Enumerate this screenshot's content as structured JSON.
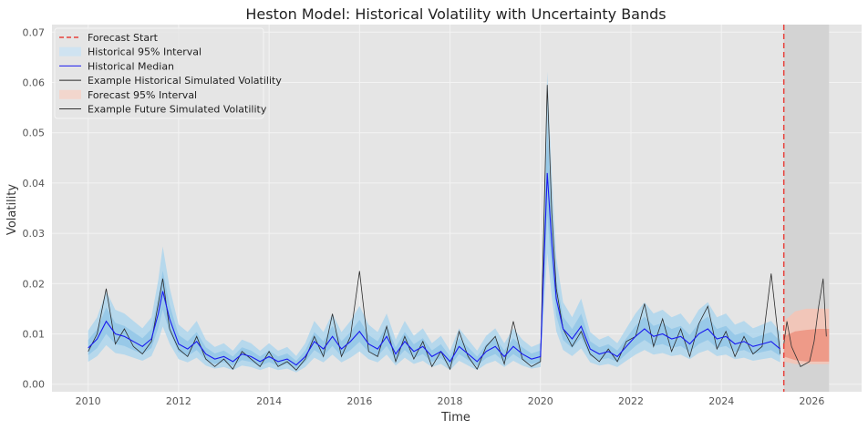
{
  "chart_data": {
    "type": "line",
    "title": "Heston Model: Historical Volatility with Uncertainty Bands",
    "xlabel": "Time",
    "ylabel": "Volatility",
    "xlim": [
      2009.2,
      2027.1
    ],
    "ylim": [
      -0.0015,
      0.0715
    ],
    "x_ticks": [
      2010,
      2012,
      2014,
      2016,
      2018,
      2020,
      2022,
      2024,
      2026
    ],
    "y_ticks": [
      0.0,
      0.01,
      0.02,
      0.03,
      0.04,
      0.05,
      0.06,
      0.07
    ],
    "y_tick_labels": [
      "0.00",
      "0.01",
      "0.02",
      "0.03",
      "0.04",
      "0.05",
      "0.06",
      "0.07"
    ],
    "grid": true,
    "legend_position": "top-left",
    "forecast_start": 2025.38,
    "forecast_region": [
      2025.38,
      2026.38
    ],
    "colors": {
      "background": "#e5e5e5",
      "grid": "#f3f3f3",
      "forecast_region": "#d3d3d3",
      "forecast_start": "#e8413b",
      "hist_band": "#a6d3ee",
      "hist_median": "#1a1aee",
      "hist_sim": "#2b2b2b",
      "fc_band": "#f0a894",
      "fc_sim": "#333333"
    },
    "series": [
      {
        "name": "Forecast Start",
        "kind": "vline",
        "color": "#e8413b"
      },
      {
        "name": "Historical 95% Interval",
        "kind": "band",
        "color": "#cfe3f1"
      },
      {
        "name": "Historical Median",
        "kind": "line",
        "color": "#1a1aee",
        "x": [
          2010.0,
          2010.2,
          2010.4,
          2010.6,
          2010.8,
          2011.0,
          2011.2,
          2011.4,
          2011.55,
          2011.65,
          2011.8,
          2012.0,
          2012.2,
          2012.4,
          2012.6,
          2012.8,
          2013.0,
          2013.2,
          2013.4,
          2013.6,
          2013.8,
          2014.0,
          2014.2,
          2014.4,
          2014.6,
          2014.8,
          2015.0,
          2015.2,
          2015.4,
          2015.6,
          2015.8,
          2016.0,
          2016.2,
          2016.4,
          2016.6,
          2016.8,
          2017.0,
          2017.2,
          2017.4,
          2017.6,
          2017.8,
          2018.0,
          2018.2,
          2018.4,
          2018.6,
          2018.8,
          2019.0,
          2019.2,
          2019.4,
          2019.6,
          2019.8,
          2020.0,
          2020.15,
          2020.25,
          2020.35,
          2020.5,
          2020.7,
          2020.9,
          2021.1,
          2021.3,
          2021.5,
          2021.7,
          2021.9,
          2022.1,
          2022.3,
          2022.5,
          2022.7,
          2022.9,
          2023.1,
          2023.3,
          2023.5,
          2023.7,
          2023.9,
          2024.1,
          2024.3,
          2024.5,
          2024.7,
          2024.9,
          2025.1,
          2025.3
        ],
        "values": [
          0.0072,
          0.009,
          0.0125,
          0.01,
          0.0095,
          0.0085,
          0.0075,
          0.009,
          0.014,
          0.0185,
          0.013,
          0.008,
          0.007,
          0.0085,
          0.006,
          0.005,
          0.0055,
          0.0045,
          0.006,
          0.0055,
          0.0045,
          0.0055,
          0.0045,
          0.005,
          0.0038,
          0.0055,
          0.0085,
          0.007,
          0.0095,
          0.007,
          0.0085,
          0.0105,
          0.008,
          0.007,
          0.0095,
          0.006,
          0.0085,
          0.0065,
          0.0075,
          0.0055,
          0.0065,
          0.0045,
          0.0075,
          0.006,
          0.0045,
          0.0065,
          0.0075,
          0.0055,
          0.0075,
          0.006,
          0.005,
          0.0055,
          0.042,
          0.028,
          0.017,
          0.011,
          0.009,
          0.0115,
          0.007,
          0.006,
          0.0065,
          0.0055,
          0.0075,
          0.0095,
          0.011,
          0.0095,
          0.01,
          0.009,
          0.0095,
          0.008,
          0.01,
          0.011,
          0.009,
          0.0095,
          0.008,
          0.0085,
          0.0075,
          0.008,
          0.0085,
          0.007
        ]
      },
      {
        "name": "Example Historical Simulated Volatility",
        "kind": "line",
        "color": "#2b2b2b",
        "x": [
          2010.0,
          2010.2,
          2010.4,
          2010.6,
          2010.8,
          2011.0,
          2011.2,
          2011.4,
          2011.55,
          2011.65,
          2011.8,
          2012.0,
          2012.2,
          2012.4,
          2012.6,
          2012.8,
          2013.0,
          2013.2,
          2013.4,
          2013.6,
          2013.8,
          2014.0,
          2014.2,
          2014.4,
          2014.6,
          2014.8,
          2015.0,
          2015.2,
          2015.4,
          2015.6,
          2015.8,
          2016.0,
          2016.2,
          2016.4,
          2016.6,
          2016.8,
          2017.0,
          2017.2,
          2017.4,
          2017.6,
          2017.8,
          2018.0,
          2018.2,
          2018.4,
          2018.6,
          2018.8,
          2019.0,
          2019.2,
          2019.4,
          2019.6,
          2019.8,
          2020.0,
          2020.15,
          2020.25,
          2020.35,
          2020.5,
          2020.7,
          2020.9,
          2021.1,
          2021.3,
          2021.5,
          2021.7,
          2021.9,
          2022.1,
          2022.3,
          2022.5,
          2022.7,
          2022.9,
          2023.1,
          2023.3,
          2023.5,
          2023.7,
          2023.9,
          2024.1,
          2024.3,
          2024.5,
          2024.7,
          2024.9,
          2025.1,
          2025.3
        ],
        "values": [
          0.0065,
          0.01,
          0.019,
          0.008,
          0.011,
          0.0075,
          0.006,
          0.0085,
          0.016,
          0.021,
          0.011,
          0.007,
          0.0055,
          0.0095,
          0.005,
          0.0035,
          0.005,
          0.003,
          0.0065,
          0.005,
          0.0035,
          0.0065,
          0.0035,
          0.0045,
          0.0028,
          0.005,
          0.0095,
          0.0055,
          0.014,
          0.0055,
          0.0095,
          0.0225,
          0.0065,
          0.0055,
          0.0115,
          0.0045,
          0.0095,
          0.005,
          0.0085,
          0.0035,
          0.0065,
          0.003,
          0.0105,
          0.0055,
          0.003,
          0.0075,
          0.0095,
          0.004,
          0.0125,
          0.005,
          0.0035,
          0.0045,
          0.0595,
          0.034,
          0.019,
          0.011,
          0.0075,
          0.0105,
          0.006,
          0.0045,
          0.007,
          0.0045,
          0.0085,
          0.0095,
          0.016,
          0.0075,
          0.013,
          0.0065,
          0.011,
          0.0055,
          0.012,
          0.0155,
          0.007,
          0.0105,
          0.0055,
          0.0095,
          0.006,
          0.0075,
          0.022,
          0.006
        ]
      },
      {
        "name": "Forecast 95% Interval",
        "kind": "band",
        "color": "#f2d6cd"
      },
      {
        "name": "Example Future Simulated Volatility",
        "kind": "line",
        "color": "#333333",
        "x": [
          2025.38,
          2025.45,
          2025.55,
          2025.65,
          2025.75,
          2025.85,
          2025.95,
          2026.05,
          2026.15,
          2026.25,
          2026.32
        ],
        "values": [
          0.008,
          0.0125,
          0.0075,
          0.0055,
          0.0035,
          0.004,
          0.0045,
          0.0085,
          0.0155,
          0.021,
          0.0095
        ]
      }
    ]
  }
}
